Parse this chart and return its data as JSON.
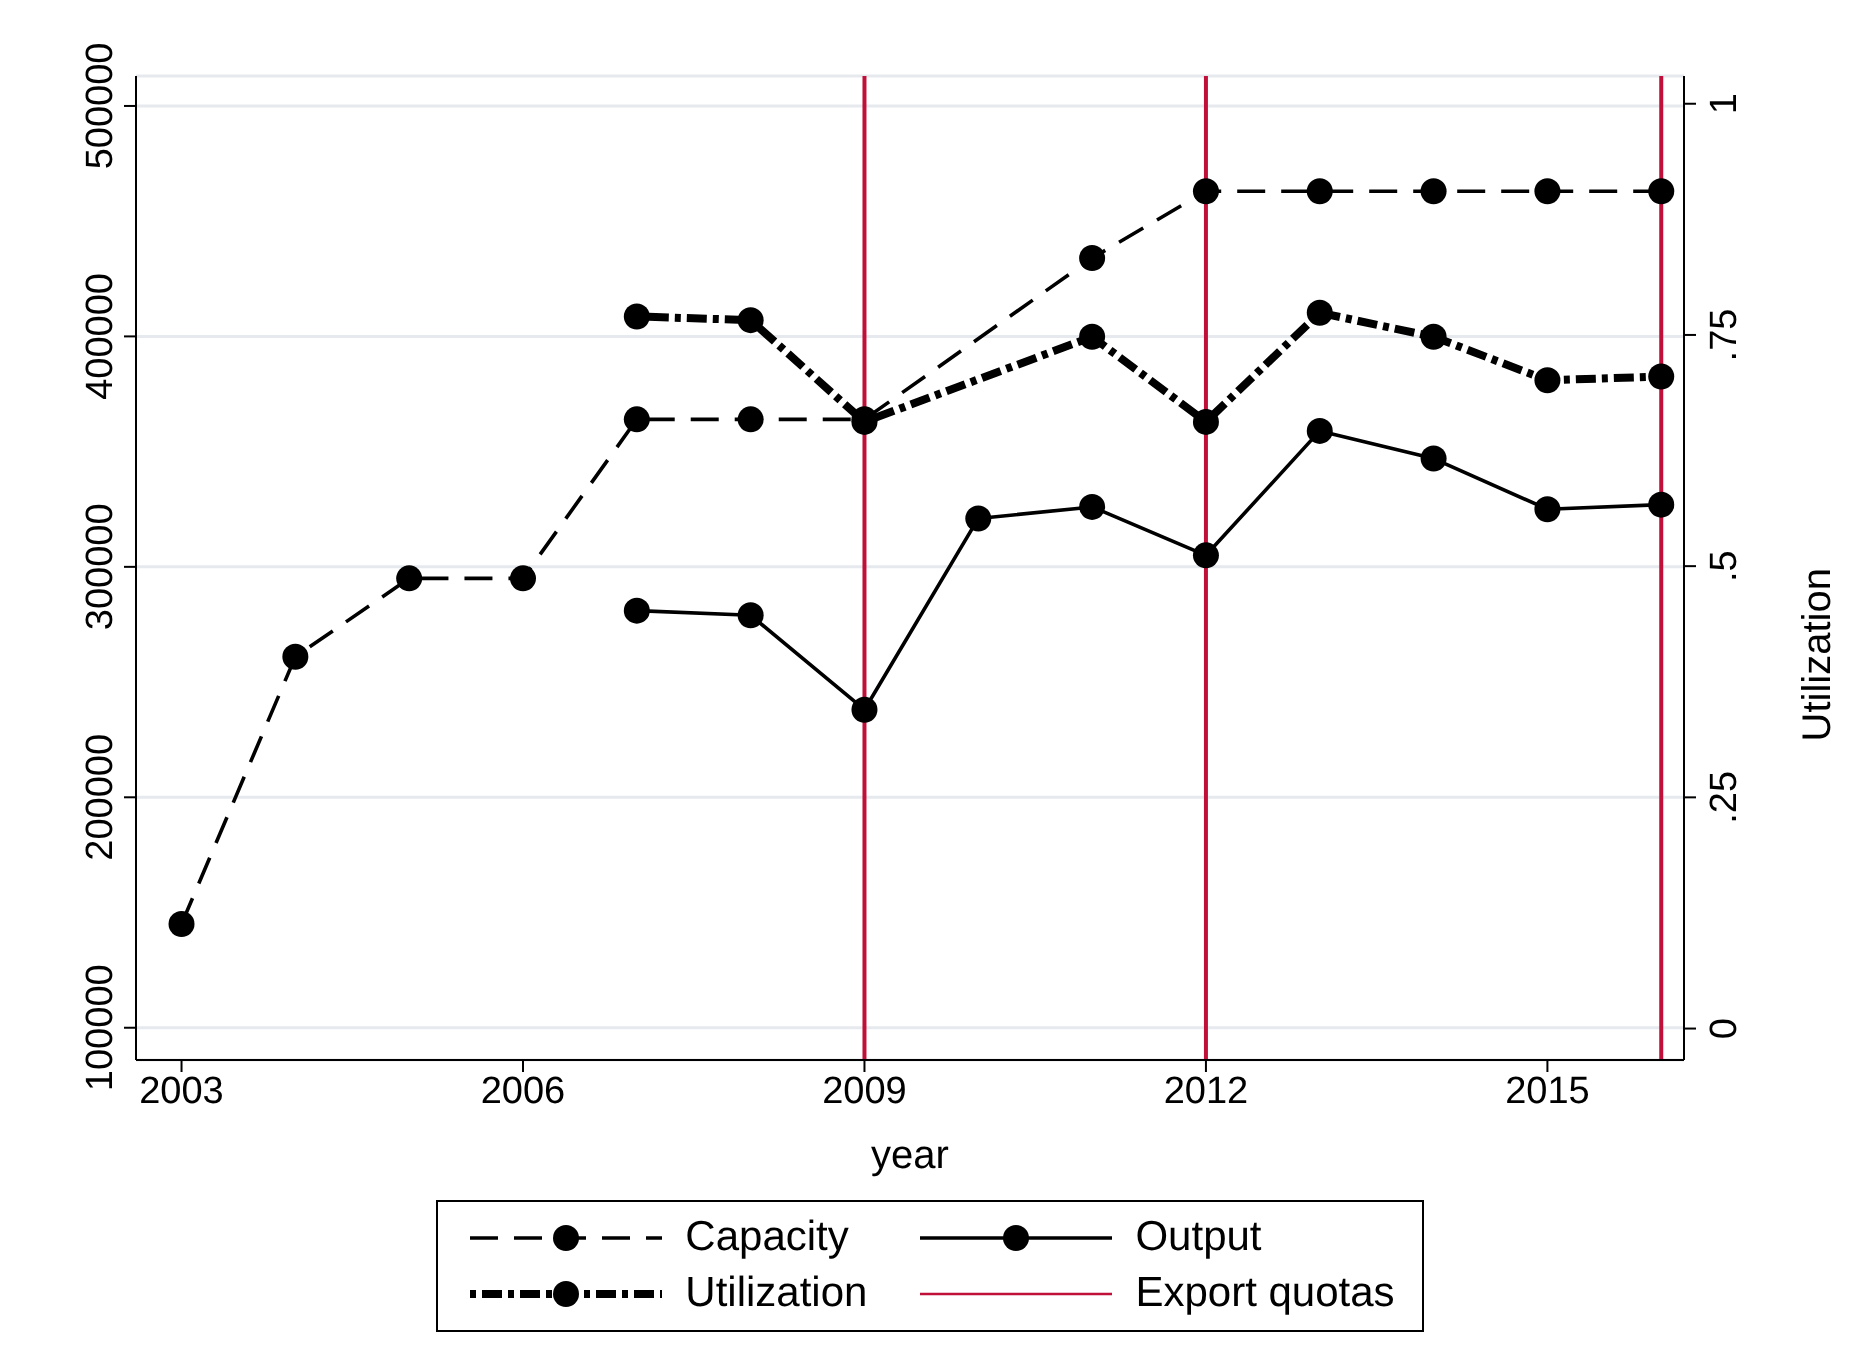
{
  "chart_data": {
    "type": "line",
    "xlabel": "year",
    "y2label": "Utilization",
    "xlim": [
      2002.6,
      2016.2
    ],
    "xticks": [
      2003,
      2006,
      2009,
      2012,
      2015
    ],
    "ylim": [
      86000,
      513000
    ],
    "yticks": [
      100000,
      200000,
      300000,
      400000,
      500000
    ],
    "y2lim": [
      -0.034,
      1.03
    ],
    "y2ticks": [
      {
        "value": 0,
        "label": "0"
      },
      {
        "value": 0.25,
        "label": ".25"
      },
      {
        "value": 0.5,
        "label": ".5"
      },
      {
        "value": 0.75,
        "label": ".75"
      },
      {
        "value": 1,
        "label": "1"
      }
    ],
    "grid": "y",
    "legend": "bottom",
    "marker": "circle",
    "series": [
      {
        "name": "Capacity",
        "color": "#000000",
        "line_style": "dashed",
        "x": [
          2003,
          2004,
          2005,
          2006,
          2007,
          2008,
          2009,
          2011,
          2012,
          2013,
          2014,
          2015,
          2016
        ],
        "values": [
          145000,
          261000,
          295000,
          295000,
          364000,
          364000,
          364000,
          434000,
          463000,
          463000,
          463000,
          463000,
          463000
        ]
      },
      {
        "name": "Output",
        "color": "#000000",
        "line_style": "solid",
        "x": [
          2007,
          2008,
          2009,
          2010,
          2011,
          2012,
          2013,
          2014,
          2015,
          2016
        ],
        "values": [
          281000,
          279000,
          238000,
          321000,
          326000,
          305000,
          359000,
          347000,
          325000,
          327000
        ]
      },
      {
        "name": "Utilization",
        "color": "#000000",
        "line_style": "dotted",
        "axis": "y2",
        "x": [
          2007,
          2008,
          2009,
          2011,
          2012,
          2013,
          2014,
          2015,
          2016
        ],
        "values": [
          0.77,
          0.766,
          0.656,
          0.748,
          0.656,
          0.774,
          0.748,
          0.701,
          0.705
        ]
      }
    ],
    "ref_lines": [
      {
        "axis": "x",
        "value": 2009,
        "label": "Export quotas",
        "color": "#c0103a"
      },
      {
        "axis": "x",
        "value": 2012,
        "color": "#c0103a"
      },
      {
        "axis": "x",
        "value": 2016,
        "color": "#c0103a"
      }
    ]
  }
}
